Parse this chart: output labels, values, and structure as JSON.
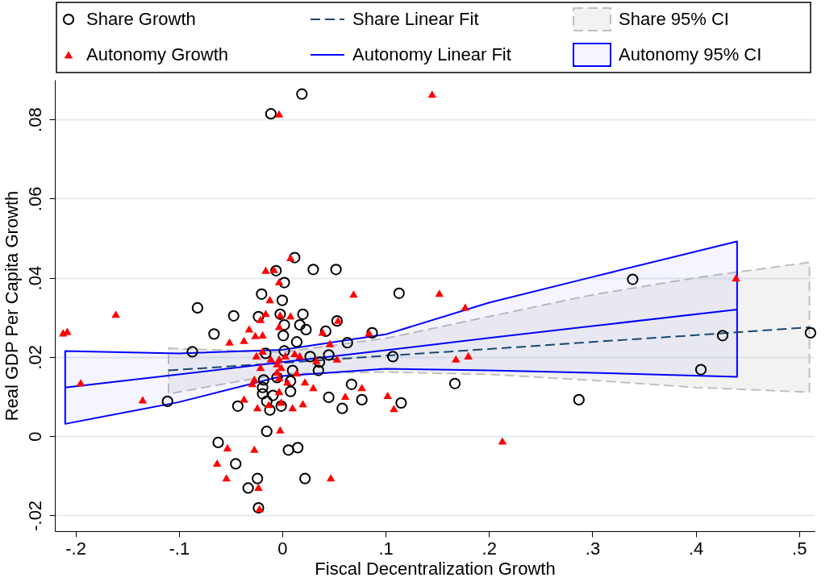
{
  "chart_data": {
    "type": "scatter",
    "xlabel": "Fiscal Decentralization Growth",
    "ylabel": "Real GDP Per Capita Growth",
    "xlim": [
      -0.22,
      0.515
    ],
    "ylim": [
      -0.024,
      0.09
    ],
    "xticks": [
      {
        "value": -0.2,
        "label": "-.2"
      },
      {
        "value": -0.1,
        "label": "-.1"
      },
      0,
      {
        "value": 0.1,
        "label": ".1"
      },
      {
        "value": 0.2,
        "label": ".2"
      },
      {
        "value": 0.3,
        "label": ".3"
      },
      {
        "value": 0.4,
        "label": ".4"
      },
      {
        "value": 0.5,
        "label": ".5"
      }
    ],
    "yticks": [
      {
        "value": -0.02,
        "label": "-.02"
      },
      0,
      {
        "value": 0.02,
        "label": ".02"
      },
      {
        "value": 0.04,
        "label": ".04"
      },
      {
        "value": 0.06,
        "label": ".06"
      },
      {
        "value": 0.08,
        "label": ".08"
      }
    ],
    "grid": "y",
    "annotations": [
      "Share 95% CI",
      "Autonomy 95% CI"
    ],
    "legend": "top",
    "series": [
      {
        "name": "Share Growth",
        "marker": "circle",
        "color": "#000000",
        "x": [
          0.019,
          -0.011,
          0.012,
          -0.006,
          0.052,
          0.03,
          0.002,
          -0.02,
          0.113,
          0.339,
          -0.082,
          0.0,
          0.02,
          -0.047,
          -0.023,
          -0.002,
          0.053,
          0.017,
          0.002,
          0.023,
          0.001,
          -0.066,
          0.042,
          0.087,
          0.063,
          0.014,
          -0.087,
          -0.111,
          0.045,
          0.107,
          0.027,
          0.002,
          -0.016,
          0.036,
          0.035,
          0.067,
          0.167,
          -0.018,
          -0.019,
          -0.019,
          -0.015,
          -0.005,
          0.01,
          0.008,
          0.008,
          -0.009,
          0.045,
          0.077,
          0.287,
          0.426,
          0.511,
          0.405,
          0.058,
          0.115,
          -0.043,
          -0.001,
          -0.012,
          -0.015,
          -0.062,
          0.006,
          0.015,
          -0.045,
          -0.024,
          0.022,
          -0.033,
          -0.023
        ],
        "values": [
          0.0864,
          0.0814,
          0.0451,
          0.0418,
          0.0421,
          0.0421,
          0.0388,
          0.0359,
          0.0361,
          0.0396,
          0.0324,
          0.0343,
          0.0308,
          0.0304,
          0.0302,
          0.0308,
          0.0291,
          0.0281,
          0.0281,
          0.0269,
          0.0254,
          0.0258,
          0.0265,
          0.0261,
          0.0236,
          0.0238,
          0.0213,
          0.0088,
          0.0205,
          0.0201,
          0.0201,
          0.0215,
          0.0209,
          0.0187,
          0.0166,
          0.0131,
          0.0133,
          0.0142,
          0.0123,
          0.0107,
          0.0088,
          0.0148,
          0.0166,
          0.0139,
          0.0113,
          0.0103,
          0.0098,
          0.0092,
          0.0092,
          0.0254,
          0.0261,
          0.0168,
          0.007,
          0.0084,
          0.0076,
          0.0076,
          0.0066,
          0.0012,
          -0.0016,
          -0.0035,
          -0.0029,
          -0.007,
          -0.0107,
          -0.0107,
          -0.0131,
          -0.0181
        ]
      },
      {
        "name": "Autonomy Growth",
        "marker": "triangle",
        "color": "#ff0000",
        "x": [
          0.145,
          -0.003,
          -0.212,
          -0.208,
          -0.161,
          -0.195,
          -0.135,
          0.008,
          -0.016,
          -0.008,
          -0.003,
          -0.012,
          0.069,
          0.152,
          0.177,
          0.439,
          -0.016,
          -0.021,
          -0.002,
          0.008,
          -0.003,
          -0.032,
          -0.026,
          -0.019,
          -0.051,
          -0.037,
          0.054,
          0.039,
          0.046,
          0.084,
          -0.019,
          -0.025,
          -0.011,
          -0.003,
          0.003,
          0.012,
          0.017,
          0.033,
          0.053,
          -0.021,
          -0.005,
          -0.001,
          -0.005,
          0.014,
          -0.027,
          -0.029,
          -0.003,
          0.005,
          0.022,
          0.03,
          -0.003,
          0.077,
          0.061,
          -0.037,
          -0.024,
          -0.013,
          -0.001,
          0.01,
          0.02,
          0.102,
          0.108,
          0.168,
          0.18,
          -0.002,
          0.213,
          -0.053,
          -0.027,
          -0.063,
          -0.054,
          0.047,
          -0.023,
          -0.022
        ],
        "values": [
          0.0864,
          0.0814,
          0.0261,
          0.0265,
          0.0308,
          0.0135,
          0.0092,
          0.0451,
          0.0419,
          0.0421,
          0.039,
          0.0345,
          0.0359,
          0.0361,
          0.0326,
          0.04,
          0.031,
          0.0295,
          0.0306,
          0.0304,
          0.0277,
          0.0271,
          0.0254,
          0.0256,
          0.0238,
          0.0242,
          0.0293,
          0.0263,
          0.0234,
          0.0261,
          0.0215,
          0.0203,
          0.0195,
          0.0195,
          0.0203,
          0.0209,
          0.0203,
          0.0191,
          0.0195,
          0.0174,
          0.0183,
          0.0174,
          0.0162,
          0.016,
          0.0144,
          0.0133,
          0.0148,
          0.0137,
          0.0137,
          0.0123,
          0.0113,
          0.0123,
          0.0101,
          0.0094,
          0.0072,
          0.008,
          0.0086,
          0.0072,
          0.0082,
          0.0103,
          0.007,
          0.0195,
          0.0203,
          0.0016,
          -0.0012,
          -0.0029,
          -0.0033,
          -0.0068,
          -0.0105,
          -0.0105,
          -0.0129,
          -0.0183
        ]
      },
      {
        "name": "Share Linear Fit",
        "type": "line",
        "line_style": "dashed",
        "color": "#1a476f",
        "x": [
          -0.11,
          0,
          0.1,
          0.2,
          0.3,
          0.4,
          0.51
        ],
        "values": [
          0.0166,
          0.0185,
          0.0203,
          0.022,
          0.0238,
          0.0255,
          0.0275
        ],
        "lower": [
          0.0107,
          0.0158,
          0.0162,
          0.0156,
          0.0141,
          0.0123,
          0.0111
        ],
        "upper": [
          0.0222,
          0.0212,
          0.0247,
          0.0302,
          0.0357,
          0.04,
          0.0439
        ]
      },
      {
        "name": "Autonomy Linear Fit",
        "type": "line",
        "line_style": "solid",
        "color": "#0000ff",
        "x": [
          -0.21,
          -0.1,
          0,
          0.1,
          0.2,
          0.3,
          0.44
        ],
        "values": [
          0.0123,
          0.0156,
          0.0187,
          0.0217,
          0.0248,
          0.0278,
          0.032
        ],
        "lower": [
          0.0031,
          0.0086,
          0.0152,
          0.017,
          0.0166,
          0.016,
          0.015
        ],
        "upper": [
          0.0215,
          0.0209,
          0.0218,
          0.0257,
          0.0337,
          0.0402,
          0.0492
        ]
      }
    ]
  }
}
